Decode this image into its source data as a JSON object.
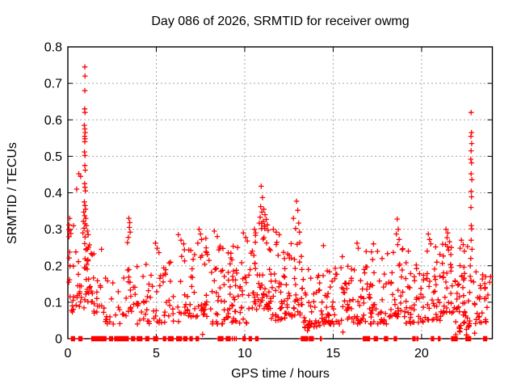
{
  "chart_data": {
    "type": "scatter",
    "title": "Day 086 of 2026, SRMTID for receiver owmg",
    "xlabel": "GPS time / hours",
    "ylabel": "SRMTID / TECUs",
    "xlim": [
      0,
      24
    ],
    "ylim": [
      0,
      0.8
    ],
    "xticks": [
      0,
      5,
      10,
      15,
      20
    ],
    "xtick_labels": [
      "0",
      "5",
      "10",
      "15",
      "20"
    ],
    "yticks": [
      0,
      0.1,
      0.2,
      0.3,
      0.4,
      0.5,
      0.6,
      0.7,
      0.8
    ],
    "ytick_labels": [
      "0",
      "0.1",
      "0.2",
      "0.3",
      "0.4",
      "0.5",
      "0.6",
      "0.7",
      "0.8"
    ],
    "grid": true,
    "legend": "none",
    "marker": "plus",
    "marker_color": "#ff0000",
    "axis_color": "#000000",
    "grid_color": "#a6a6a6",
    "points": [
      [
        0.96,
        0.745
      ],
      [
        0.97,
        0.72
      ],
      [
        0.96,
        0.68
      ],
      [
        0.95,
        0.63
      ],
      [
        0.97,
        0.62
      ],
      [
        0.93,
        0.585
      ],
      [
        0.96,
        0.575
      ],
      [
        0.98,
        0.565
      ],
      [
        0.95,
        0.555
      ],
      [
        0.97,
        0.548
      ],
      [
        0.96,
        0.54
      ],
      [
        0.94,
        0.512
      ],
      [
        0.97,
        0.502
      ],
      [
        0.96,
        0.475
      ],
      [
        0.98,
        0.462
      ],
      [
        0.62,
        0.452
      ],
      [
        0.72,
        0.445
      ],
      [
        0.5,
        0.41
      ],
      [
        0.95,
        0.425
      ],
      [
        0.97,
        0.415
      ],
      [
        0.99,
        0.405
      ],
      [
        0.93,
        0.375
      ],
      [
        0.97,
        0.365
      ],
      [
        1.0,
        0.355
      ],
      [
        0.9,
        0.347
      ],
      [
        0.95,
        0.337
      ],
      [
        1.02,
        0.33
      ],
      [
        0.88,
        0.322
      ],
      [
        0.97,
        0.315
      ],
      [
        1.05,
        0.31
      ],
      [
        0.92,
        0.303
      ],
      [
        1.1,
        0.295
      ],
      [
        0.85,
        0.29
      ],
      [
        1.15,
        0.285
      ],
      [
        0.1,
        0.33
      ],
      [
        0.06,
        0.3
      ],
      [
        1.9,
        0.245
      ],
      [
        3.45,
        0.33
      ],
      [
        3.5,
        0.318
      ],
      [
        3.48,
        0.305
      ],
      [
        3.52,
        0.292
      ],
      [
        3.42,
        0.278
      ],
      [
        4.95,
        0.262
      ],
      [
        5.05,
        0.248
      ],
      [
        5.15,
        0.236
      ],
      [
        6.25,
        0.285
      ],
      [
        6.4,
        0.27
      ],
      [
        6.55,
        0.26
      ],
      [
        7.42,
        0.3
      ],
      [
        7.5,
        0.287
      ],
      [
        7.56,
        0.272
      ],
      [
        7.35,
        0.262
      ],
      [
        7.62,
        0.012
      ],
      [
        13.55,
        0.022
      ],
      [
        13.6,
        0.038
      ],
      [
        15.55,
        0.018
      ],
      [
        23.0,
        0.015
      ],
      [
        8.28,
        0.295
      ],
      [
        8.45,
        0.28
      ],
      [
        9.92,
        0.29
      ],
      [
        10.05,
        0.278
      ],
      [
        10.15,
        0.268
      ],
      [
        10.93,
        0.418
      ],
      [
        11.0,
        0.387
      ],
      [
        10.9,
        0.362
      ],
      [
        11.08,
        0.355
      ],
      [
        10.97,
        0.347
      ],
      [
        11.15,
        0.34
      ],
      [
        10.87,
        0.333
      ],
      [
        11.22,
        0.327
      ],
      [
        11.05,
        0.322
      ],
      [
        10.82,
        0.317
      ],
      [
        11.28,
        0.312
      ],
      [
        11.12,
        0.307
      ],
      [
        10.95,
        0.302
      ],
      [
        11.32,
        0.297
      ],
      [
        10.55,
        0.3
      ],
      [
        10.62,
        0.29
      ],
      [
        11.62,
        0.3
      ],
      [
        11.78,
        0.292
      ],
      [
        11.95,
        0.285
      ],
      [
        12.75,
        0.33
      ],
      [
        12.93,
        0.377
      ],
      [
        13.0,
        0.352
      ],
      [
        13.05,
        0.317
      ],
      [
        12.88,
        0.302
      ],
      [
        13.1,
        0.292
      ],
      [
        14.45,
        0.255
      ],
      [
        15.52,
        0.225
      ],
      [
        16.35,
        0.262
      ],
      [
        16.42,
        0.248
      ],
      [
        17.28,
        0.26
      ],
      [
        18.62,
        0.328
      ],
      [
        18.68,
        0.3
      ],
      [
        18.57,
        0.287
      ],
      [
        18.73,
        0.272
      ],
      [
        18.65,
        0.258
      ],
      [
        19.25,
        0.24
      ],
      [
        20.38,
        0.287
      ],
      [
        20.45,
        0.272
      ],
      [
        20.52,
        0.26
      ],
      [
        21.38,
        0.3
      ],
      [
        21.48,
        0.29
      ],
      [
        21.44,
        0.277
      ],
      [
        21.58,
        0.266
      ],
      [
        21.35,
        0.258
      ],
      [
        21.68,
        0.25
      ],
      [
        21.52,
        0.243
      ],
      [
        22.25,
        0.27
      ],
      [
        22.35,
        0.258
      ],
      [
        22.18,
        0.248
      ],
      [
        22.42,
        0.24
      ],
      [
        22.8,
        0.62
      ],
      [
        22.82,
        0.565
      ],
      [
        22.79,
        0.555
      ],
      [
        22.83,
        0.535
      ],
      [
        22.8,
        0.515
      ],
      [
        22.78,
        0.492
      ],
      [
        22.82,
        0.482
      ],
      [
        22.8,
        0.452
      ],
      [
        22.84,
        0.436
      ],
      [
        22.8,
        0.404
      ],
      [
        22.82,
        0.389
      ],
      [
        22.79,
        0.36
      ],
      [
        22.81,
        0.31
      ],
      [
        22.83,
        0.301
      ],
      [
        22.8,
        0.27
      ],
      [
        22.85,
        0.245
      ],
      [
        22.78,
        0.22
      ],
      [
        23.45,
        0.175
      ],
      [
        23.6,
        0.14
      ],
      [
        23.75,
        0.12
      ],
      [
        23.85,
        0.155
      ],
      [
        23.9,
        0.17
      ],
      [
        23.55,
        0.11
      ]
    ],
    "cloud_bands": [
      [
        0.02,
        0.35,
        18,
        0.07,
        0.33
      ],
      [
        0.35,
        0.92,
        16,
        0.08,
        0.26
      ],
      [
        0.92,
        1.4,
        30,
        0.1,
        0.3
      ],
      [
        1.4,
        2.05,
        16,
        0.07,
        0.25
      ],
      [
        2.05,
        3.3,
        22,
        0.04,
        0.19
      ],
      [
        3.3,
        3.8,
        16,
        0.07,
        0.28
      ],
      [
        3.8,
        5.0,
        30,
        0.04,
        0.22
      ],
      [
        5.0,
        6.3,
        30,
        0.04,
        0.21
      ],
      [
        6.3,
        7.1,
        26,
        0.06,
        0.26
      ],
      [
        7.1,
        8.1,
        30,
        0.06,
        0.28
      ],
      [
        8.1,
        9.2,
        44,
        0.04,
        0.26
      ],
      [
        9.2,
        10.2,
        40,
        0.04,
        0.26
      ],
      [
        10.2,
        10.7,
        20,
        0.08,
        0.29
      ],
      [
        10.7,
        11.5,
        40,
        0.08,
        0.32
      ],
      [
        11.5,
        12.6,
        48,
        0.05,
        0.27
      ],
      [
        12.6,
        13.3,
        30,
        0.06,
        0.27
      ],
      [
        13.3,
        14.3,
        38,
        0.03,
        0.19
      ],
      [
        14.3,
        15.4,
        42,
        0.04,
        0.2
      ],
      [
        15.4,
        16.1,
        28,
        0.05,
        0.22
      ],
      [
        16.1,
        17.1,
        36,
        0.04,
        0.24
      ],
      [
        17.1,
        18.1,
        36,
        0.04,
        0.24
      ],
      [
        18.1,
        19.1,
        36,
        0.06,
        0.25
      ],
      [
        19.1,
        20.1,
        38,
        0.04,
        0.22
      ],
      [
        20.1,
        21.1,
        38,
        0.05,
        0.26
      ],
      [
        21.1,
        21.9,
        30,
        0.07,
        0.27
      ],
      [
        21.9,
        22.7,
        44,
        0.01,
        0.26
      ],
      [
        22.7,
        23.1,
        12,
        0.04,
        0.2
      ],
      [
        23.1,
        23.92,
        20,
        0.04,
        0.18
      ]
    ],
    "zero_runs": [
      [
        0.2,
        0.42
      ],
      [
        0.62,
        0.8
      ],
      [
        1.35,
        2.2
      ],
      [
        2.35,
        2.55
      ],
      [
        2.65,
        3.45
      ],
      [
        3.6,
        3.8
      ],
      [
        3.92,
        4.2
      ],
      [
        4.4,
        4.6
      ],
      [
        4.85,
        5.1
      ],
      [
        5.4,
        5.55
      ],
      [
        5.68,
        5.95
      ],
      [
        6.15,
        6.45
      ],
      [
        6.55,
        6.75
      ],
      [
        6.9,
        7.05
      ],
      [
        7.25,
        7.4
      ],
      [
        8.5,
        8.8
      ],
      [
        8.95,
        9.2
      ],
      [
        9.3,
        9.32
      ],
      [
        9.42,
        9.44
      ],
      [
        9.52,
        9.54
      ],
      [
        9.9,
        10.05
      ],
      [
        10.25,
        10.4
      ],
      [
        10.62,
        10.78
      ],
      [
        13.2,
        13.58
      ],
      [
        13.65,
        13.9
      ],
      [
        14.28,
        14.36
      ],
      [
        16.7,
        17.1
      ],
      [
        17.32,
        17.52
      ],
      [
        17.9,
        18.12
      ],
      [
        18.45,
        18.62
      ],
      [
        19.5,
        19.66
      ],
      [
        19.74,
        19.82
      ],
      [
        20.55,
        20.72
      ],
      [
        20.95,
        21.05
      ],
      [
        21.7,
        22.05
      ],
      [
        22.5,
        22.78
      ],
      [
        23.5,
        23.72
      ]
    ],
    "zero_step": 0.045,
    "y_bias": 1.8,
    "seed": 20260386
  }
}
